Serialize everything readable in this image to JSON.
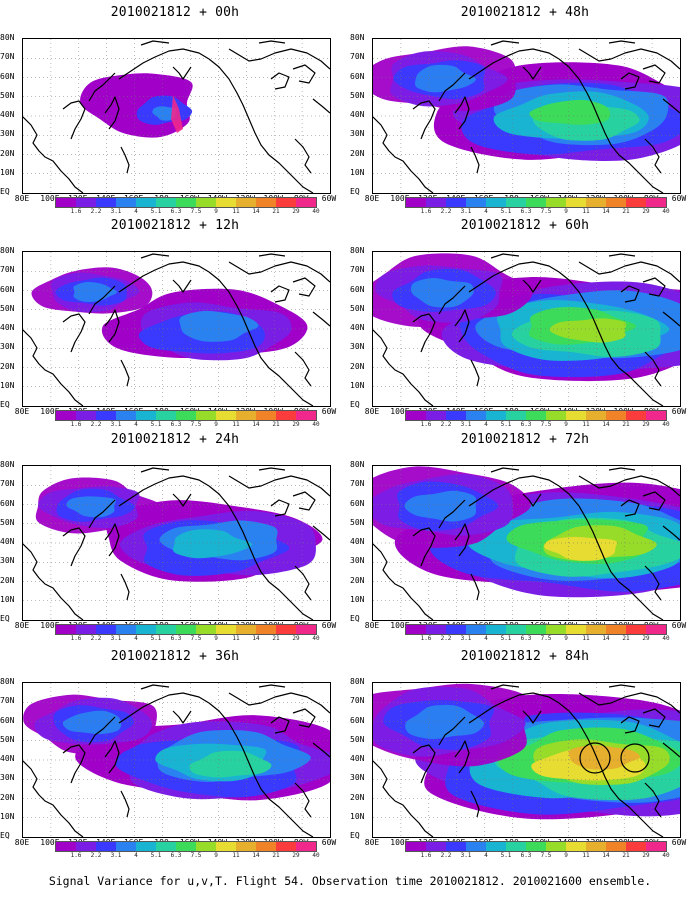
{
  "caption": "Signal Variance for u,v,T. Flight 54. Observation time 2010021812. 2010021600 ensemble.",
  "y_labels": [
    "80N",
    "70N",
    "60N",
    "50N",
    "40N",
    "30N",
    "20N",
    "10N",
    "EQ"
  ],
  "x_labels": [
    "80E",
    "100E",
    "120E",
    "140E",
    "160E",
    "180",
    "160W",
    "140W",
    "120W",
    "100W",
    "80W",
    "60W"
  ],
  "colorbar": {
    "labels": [
      "1.6",
      "2.2",
      "3.1",
      "4",
      "5.1",
      "6.3",
      "7.5",
      "9",
      "11",
      "14",
      "21",
      "29",
      "40"
    ],
    "colors": [
      "#a000c8",
      "#7a1ee6",
      "#3a3aff",
      "#2a82f0",
      "#19b4d2",
      "#28d2a0",
      "#3cdc5a",
      "#96dc28",
      "#e6dc32",
      "#e6af2d",
      "#f08228",
      "#fa3c3c",
      "#f0288c"
    ]
  },
  "panels": [
    {
      "title": "2010021812 + 00h",
      "level": 0,
      "special": "t00"
    },
    {
      "title": "2010021812 + 12h",
      "level": 1
    },
    {
      "title": "2010021812 + 24h",
      "level": 2
    },
    {
      "title": "2010021812 + 36h",
      "level": 3
    },
    {
      "title": "2010021812 + 48h",
      "level": 4
    },
    {
      "title": "2010021812 + 60h",
      "level": 5
    },
    {
      "title": "2010021812 + 72h",
      "level": 6
    },
    {
      "title": "2010021812 + 84h",
      "level": 7,
      "special": "circles"
    }
  ]
}
